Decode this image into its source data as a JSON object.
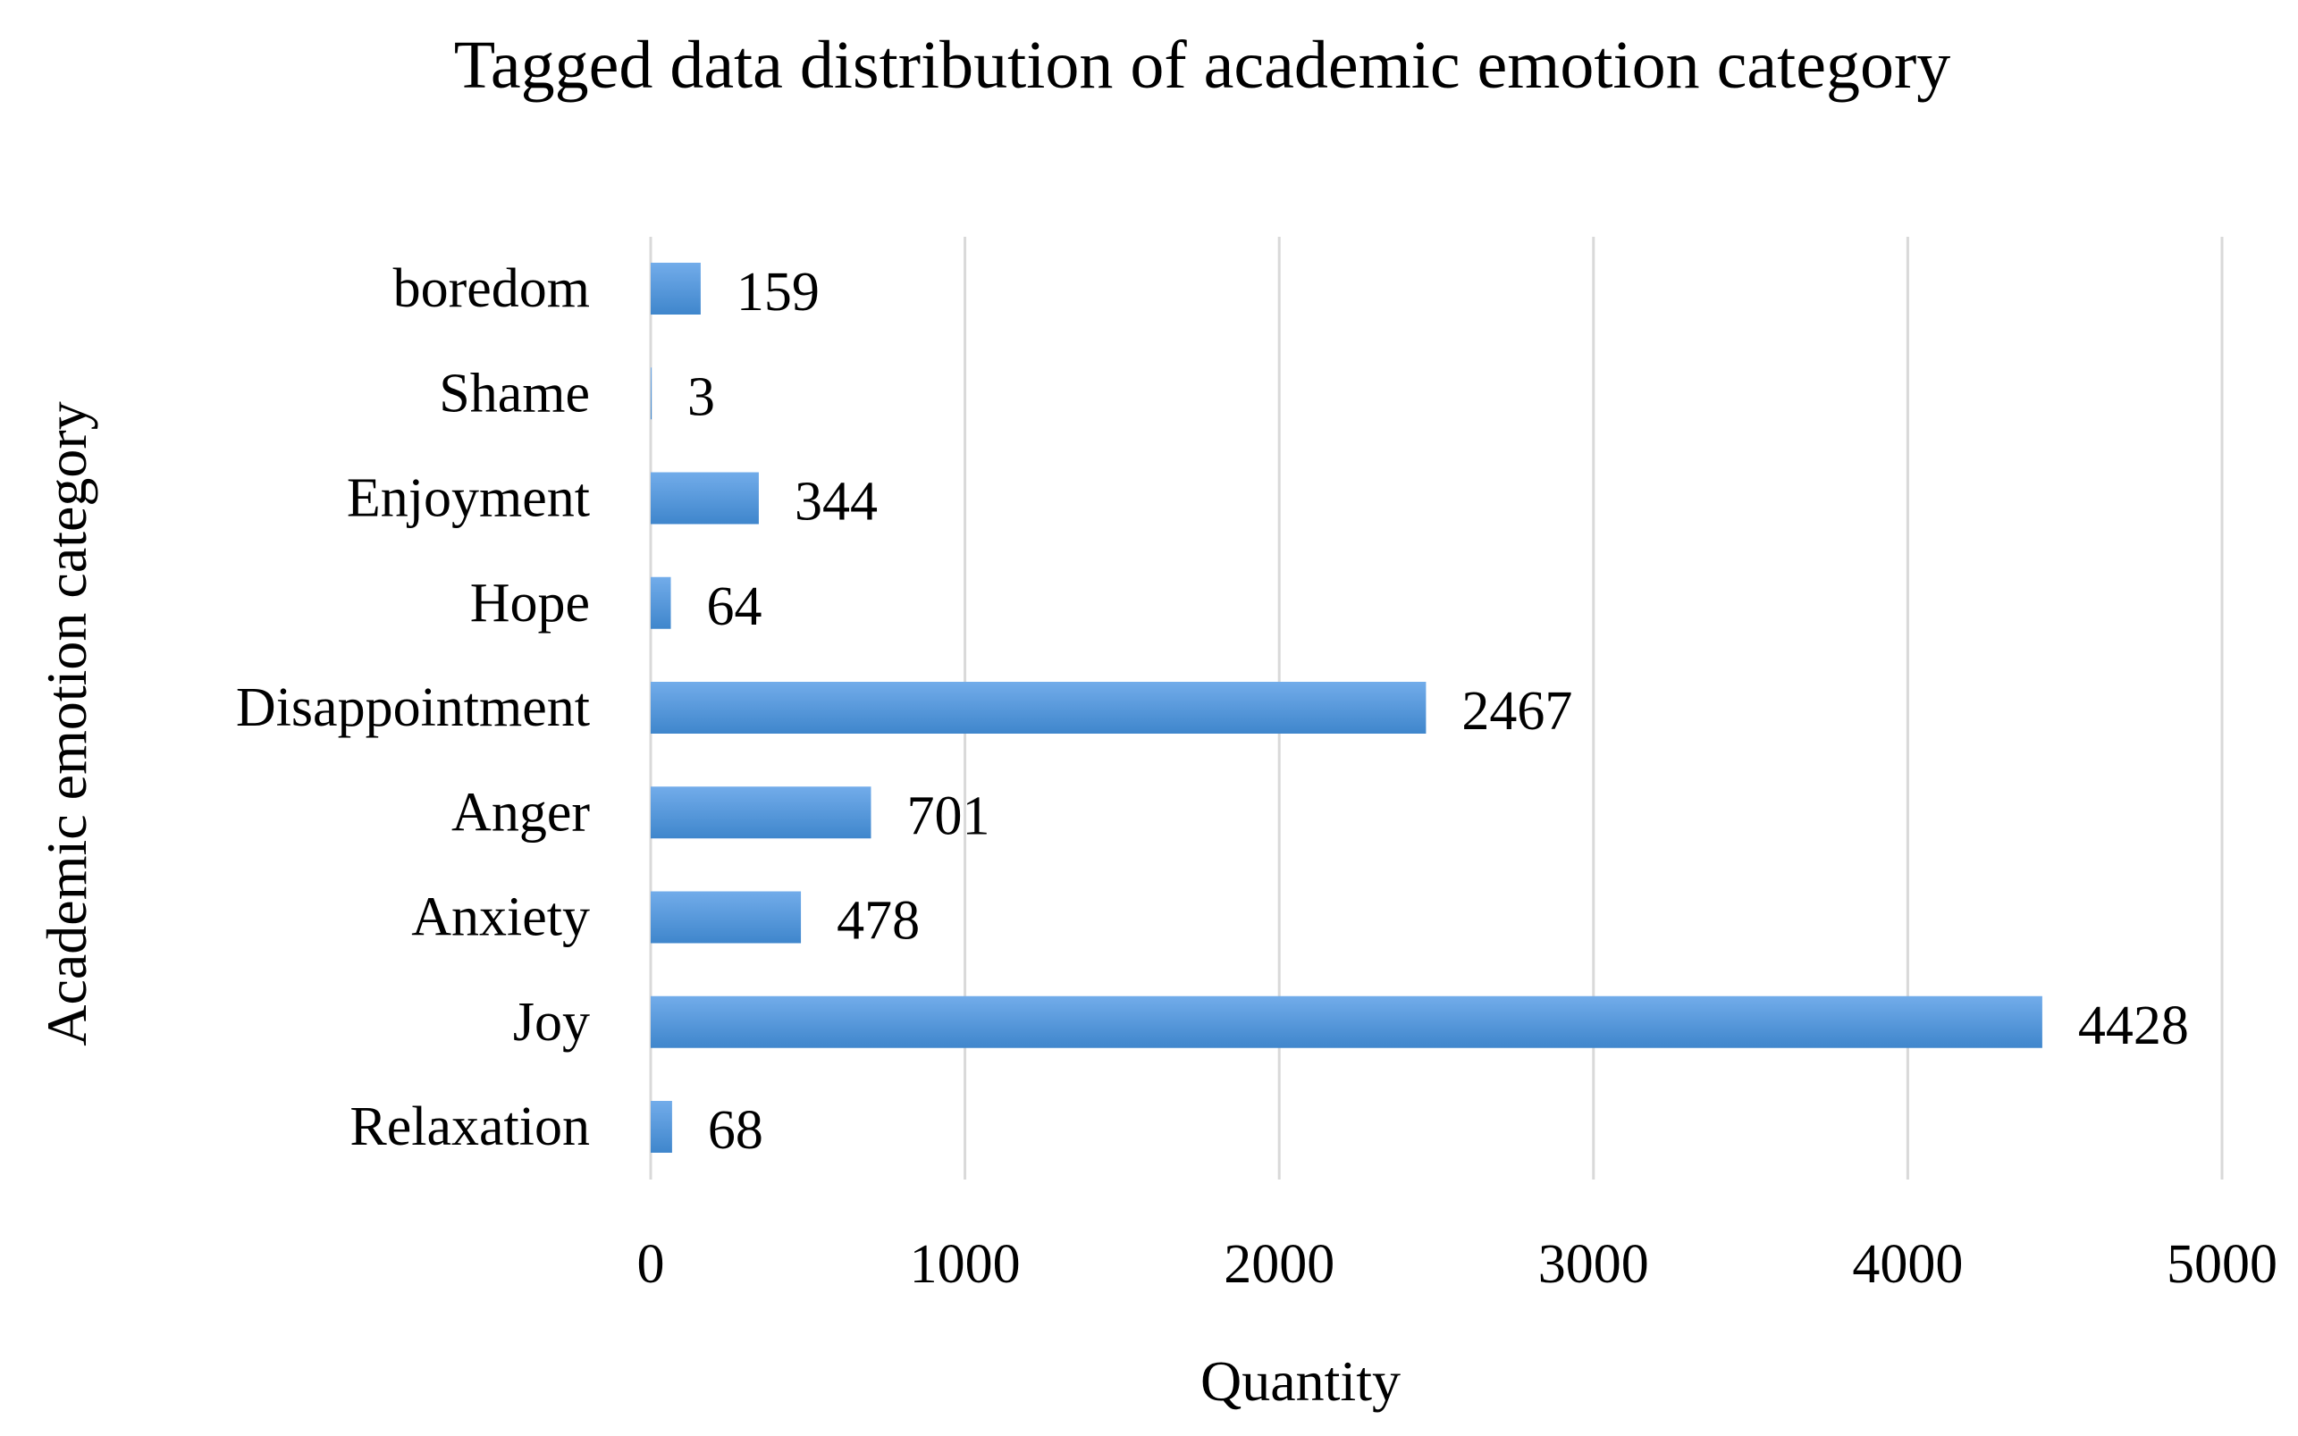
{
  "chart_data": {
    "type": "bar",
    "orientation": "horizontal",
    "title": "Tagged data distribution of academic emotion category",
    "xlabel": "Quantity",
    "ylabel": "Academic emotion category",
    "categories": [
      "boredom",
      "Shame",
      "Enjoyment",
      "Hope",
      "Disappointment",
      "Anger",
      "Anxiety",
      "Joy",
      "Relaxation"
    ],
    "values": [
      159,
      3,
      344,
      64,
      2467,
      701,
      478,
      4428,
      68
    ],
    "data_labels": [
      "159",
      "3",
      "344",
      "64",
      "2467",
      "701",
      "478",
      "4428",
      "68"
    ],
    "xlim": [
      0,
      5000
    ],
    "xticks": [
      0,
      1000,
      2000,
      3000,
      4000,
      5000
    ],
    "xtick_labels": [
      "0",
      "1000",
      "2000",
      "3000",
      "4000",
      "5000"
    ],
    "grid": "vertical",
    "legend": "none",
    "bar_color": "#4a8fd4",
    "bar_color_light": "#6aa8e6"
  }
}
